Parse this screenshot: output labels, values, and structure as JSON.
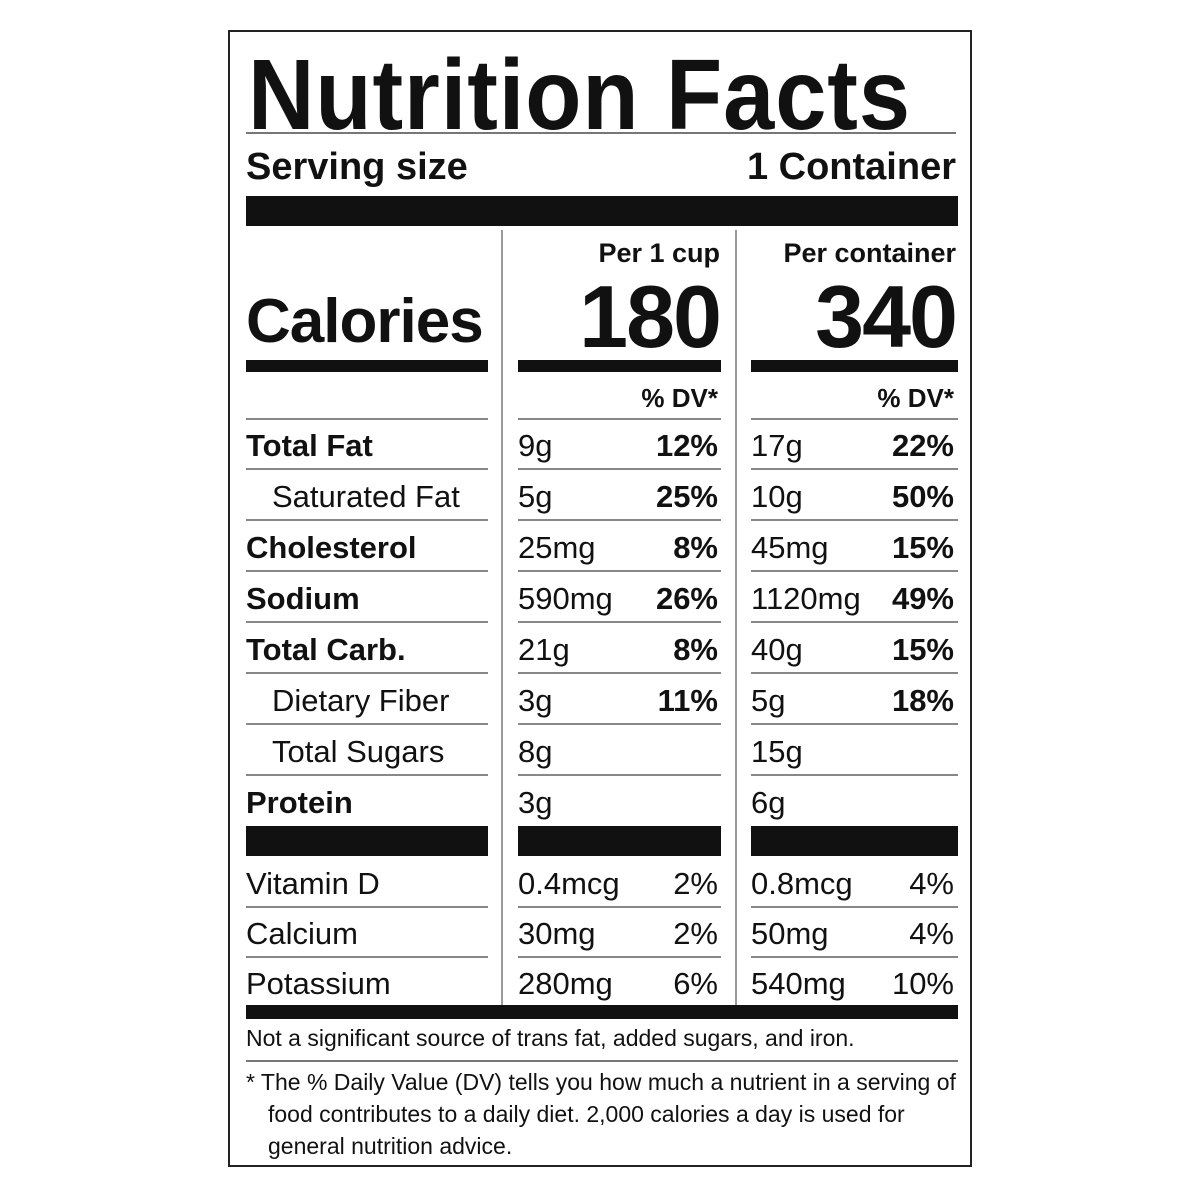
{
  "title": "Nutrition Facts",
  "serving": {
    "label": "Serving size",
    "value": "1 Container"
  },
  "columns": [
    {
      "header": "Per 1 cup",
      "calories": "180",
      "dv_header": "% DV*"
    },
    {
      "header": "Per container",
      "calories": "340",
      "dv_header": "% DV*"
    }
  ],
  "calories_label": "Calories",
  "nutrients": [
    {
      "name": "Total Fat",
      "bold": true,
      "indent": false,
      "amt1": "9g",
      "dv1": "12%",
      "amt2": "17g",
      "dv2": "22%"
    },
    {
      "name": "Saturated Fat",
      "bold": false,
      "indent": true,
      "amt1": "5g",
      "dv1": "25%",
      "amt2": "10g",
      "dv2": "50%"
    },
    {
      "name": "Cholesterol",
      "bold": true,
      "indent": false,
      "amt1": "25mg",
      "dv1": "8%",
      "amt2": "45mg",
      "dv2": "15%"
    },
    {
      "name": "Sodium",
      "bold": true,
      "indent": false,
      "amt1": "590mg",
      "dv1": "26%",
      "amt2": "1120mg",
      "dv2": "49%"
    },
    {
      "name": "Total Carb.",
      "bold": true,
      "indent": false,
      "amt1": "21g",
      "dv1": "8%",
      "amt2": "40g",
      "dv2": "15%"
    },
    {
      "name": "Dietary Fiber",
      "bold": false,
      "indent": true,
      "amt1": "3g",
      "dv1": "11%",
      "amt2": "5g",
      "dv2": "18%"
    },
    {
      "name": "Total Sugars",
      "bold": false,
      "indent": true,
      "amt1": "8g",
      "dv1": "",
      "amt2": "15g",
      "dv2": ""
    },
    {
      "name": "Protein",
      "bold": true,
      "indent": false,
      "amt1": "3g",
      "dv1": "",
      "amt2": "6g",
      "dv2": ""
    }
  ],
  "vitamins": [
    {
      "name": "Vitamin D",
      "amt1": "0.4mcg",
      "dv1": "2%",
      "amt2": "0.8mcg",
      "dv2": "4%"
    },
    {
      "name": "Calcium",
      "amt1": "30mg",
      "dv1": "2%",
      "amt2": "50mg",
      "dv2": "4%"
    },
    {
      "name": "Potassium",
      "amt1": "280mg",
      "dv1": "6%",
      "amt2": "540mg",
      "dv2": "10%"
    }
  ],
  "not_significant": "Not a significant source of trans fat, added sugars, and iron.",
  "footnote": [
    "* The % Daily Value (DV) tells you how much a nutrient in a serving of",
    "food contributes to a daily diet. 2,000 calories a day is used for",
    "general nutrition advice."
  ]
}
